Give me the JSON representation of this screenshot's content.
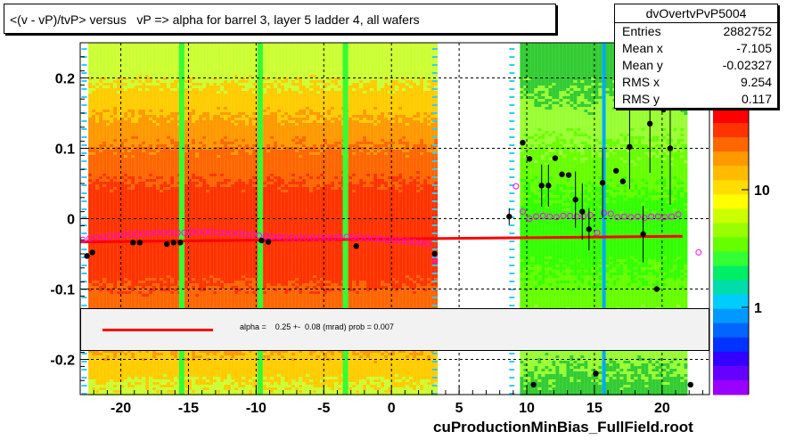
{
  "title": "<(v - vP)/tvP> versus   vP => alpha for barrel 3, layer 5 ladder 4, all wafers",
  "stats": {
    "name": "dvOvertvPvP5004",
    "rows": [
      {
        "label": "Entries",
        "value": "2882752"
      },
      {
        "label": "Mean x",
        "value": "-7.105"
      },
      {
        "label": "Mean y",
        "value": "-0.02327"
      },
      {
        "label": "RMS x",
        "value": "9.254"
      },
      {
        "label": "RMS y",
        "value": "0.117"
      }
    ]
  },
  "fit_legend": "alpha =    0.25 +-  0.08 (mrad) prob = 0.007",
  "file_label": "cuProductionMinBias_FullField.root",
  "colors": {
    "fit_line": "#ff0000",
    "profile_points": "#000000",
    "open_markers": "#ff00ff",
    "grid": "#000000"
  },
  "chart_data": {
    "type": "scatter",
    "description_of_layers": [
      "2D histogram colour map",
      "profile points",
      "linear fit"
    ],
    "xlim": [
      -23,
      23.5
    ],
    "ylim": [
      -0.25,
      0.25
    ],
    "x_ticks": [
      "-20",
      "-15",
      "-10",
      "-5",
      "0",
      "5",
      "10",
      "15",
      "20"
    ],
    "x_tick_values": [
      -20,
      -15,
      -10,
      -5,
      0,
      5,
      10,
      15,
      20
    ],
    "y_ticks": [
      "0.2",
      "0.1",
      "0",
      "-0.1",
      "-0.2"
    ],
    "y_tick_values": [
      0.2,
      0.1,
      0,
      -0.1,
      -0.2
    ],
    "z_scale": "log",
    "z_ticks": [
      "10",
      "1"
    ],
    "z_tick_values": [
      10,
      1
    ],
    "grid": true,
    "fit_line": {
      "x": [
        -23,
        21.5
      ],
      "y": [
        -0.033,
        -0.025
      ]
    },
    "profile_points": [
      {
        "x": -22.5,
        "y": -0.053
      },
      {
        "x": -22.1,
        "y": -0.048
      },
      {
        "x": -19.1,
        "y": -0.034
      },
      {
        "x": -18.6,
        "y": -0.034
      },
      {
        "x": -16.6,
        "y": -0.036
      },
      {
        "x": -16.1,
        "y": -0.034
      },
      {
        "x": -15.6,
        "y": -0.034
      },
      {
        "x": -9.6,
        "y": -0.031
      },
      {
        "x": -9.1,
        "y": -0.033
      },
      {
        "x": -2.6,
        "y": -0.039
      },
      {
        "x": 3.2,
        "y": -0.05
      },
      {
        "x": 8.7,
        "y": 0.003,
        "err": 0.012
      },
      {
        "x": 9.7,
        "y": 0.108
      },
      {
        "x": 10.2,
        "y": 0.085
      },
      {
        "x": 11.1,
        "y": 0.047,
        "err": 0.03
      },
      {
        "x": 11.6,
        "y": 0.047,
        "err": 0.03
      },
      {
        "x": 12.1,
        "y": 0.086
      },
      {
        "x": 12.6,
        "y": 0.063
      },
      {
        "x": 13.1,
        "y": 0.062
      },
      {
        "x": 13.6,
        "y": 0.027,
        "err": 0.04
      },
      {
        "x": 14.1,
        "y": 0.01,
        "err": 0.04
      },
      {
        "x": 14.6,
        "y": -0.015,
        "err": 0.03
      },
      {
        "x": 15.1,
        "y": -0.22
      },
      {
        "x": 15.6,
        "y": 0.051,
        "err": 0.05
      },
      {
        "x": 16.6,
        "y": 0.068
      },
      {
        "x": 17.1,
        "y": 0.053
      },
      {
        "x": 17.6,
        "y": 0.102,
        "err": 0.06
      },
      {
        "x": 18.6,
        "y": -0.022,
        "err": 0.04
      },
      {
        "x": 19.1,
        "y": 0.135,
        "err": 0.07
      },
      {
        "x": 19.6,
        "y": -0.1
      },
      {
        "x": 20.1,
        "y": 0.155
      },
      {
        "x": 20.6,
        "y": 0.1,
        "err": 0.08
      },
      {
        "x": 22.1,
        "y": -0.236
      },
      {
        "x": 10.5,
        "y": -0.236
      }
    ],
    "open_markers": [
      {
        "x": -22.8,
        "y": -0.03
      },
      {
        "x": -22.3,
        "y": -0.028
      },
      {
        "x": -21.8,
        "y": -0.027
      },
      {
        "x": -21.3,
        "y": -0.026
      },
      {
        "x": -20.8,
        "y": -0.025
      },
      {
        "x": -20.3,
        "y": -0.024
      },
      {
        "x": -19.8,
        "y": -0.023
      },
      {
        "x": -19.3,
        "y": -0.022
      },
      {
        "x": -18.8,
        "y": -0.022
      },
      {
        "x": -18.3,
        "y": -0.021
      },
      {
        "x": -17.8,
        "y": -0.021
      },
      {
        "x": -17.3,
        "y": -0.02
      },
      {
        "x": -16.8,
        "y": -0.02
      },
      {
        "x": -16.3,
        "y": -0.02
      },
      {
        "x": -15.8,
        "y": -0.02
      },
      {
        "x": -15.3,
        "y": -0.02
      },
      {
        "x": -14.8,
        "y": -0.019
      },
      {
        "x": -14.3,
        "y": -0.019
      },
      {
        "x": -13.8,
        "y": -0.019
      },
      {
        "x": -13.3,
        "y": -0.019
      },
      {
        "x": -12.8,
        "y": -0.02
      },
      {
        "x": -12.3,
        "y": -0.02
      },
      {
        "x": -11.8,
        "y": -0.021
      },
      {
        "x": -11.3,
        "y": -0.021
      },
      {
        "x": -10.8,
        "y": -0.022
      },
      {
        "x": -10.3,
        "y": -0.023
      },
      {
        "x": -9.8,
        "y": -0.024
      },
      {
        "x": -9.3,
        "y": -0.025
      },
      {
        "x": -8.8,
        "y": -0.026
      },
      {
        "x": -8.3,
        "y": -0.026
      },
      {
        "x": -7.8,
        "y": -0.027
      },
      {
        "x": -7.3,
        "y": -0.027
      },
      {
        "x": -6.8,
        "y": -0.027
      },
      {
        "x": -6.3,
        "y": -0.027
      },
      {
        "x": -5.8,
        "y": -0.027
      },
      {
        "x": -5.3,
        "y": -0.027
      },
      {
        "x": -4.8,
        "y": -0.027
      },
      {
        "x": -4.3,
        "y": -0.027
      },
      {
        "x": -3.8,
        "y": -0.026
      },
      {
        "x": -3.3,
        "y": -0.026
      },
      {
        "x": -2.8,
        "y": -0.026
      },
      {
        "x": -2.3,
        "y": -0.027
      },
      {
        "x": -1.8,
        "y": -0.027
      },
      {
        "x": -1.3,
        "y": -0.028
      },
      {
        "x": -0.8,
        "y": -0.029
      },
      {
        "x": -0.3,
        "y": -0.03
      },
      {
        "x": 0.2,
        "y": -0.031
      },
      {
        "x": 0.7,
        "y": -0.031
      },
      {
        "x": 1.2,
        "y": -0.032
      },
      {
        "x": 1.7,
        "y": -0.033
      },
      {
        "x": 2.2,
        "y": -0.034
      },
      {
        "x": 2.7,
        "y": -0.036
      },
      {
        "x": 3.2,
        "y": -0.06
      },
      {
        "x": 9.2,
        "y": 0.046
      },
      {
        "x": 9.7,
        "y": 0.01
      },
      {
        "x": 10.2,
        "y": 0.0
      },
      {
        "x": 10.7,
        "y": 0.003
      },
      {
        "x": 11.2,
        "y": 0.004
      },
      {
        "x": 11.7,
        "y": 0.003
      },
      {
        "x": 12.2,
        "y": 0.002
      },
      {
        "x": 12.7,
        "y": 0.004
      },
      {
        "x": 13.2,
        "y": 0.004
      },
      {
        "x": 13.7,
        "y": 0.003
      },
      {
        "x": 14.2,
        "y": 0.003
      },
      {
        "x": 14.7,
        "y": 0.005
      },
      {
        "x": 15.2,
        "y": -0.02
      },
      {
        "x": 15.7,
        "y": 0.008
      },
      {
        "x": 16.2,
        "y": 0.007
      },
      {
        "x": 16.7,
        "y": 0.002
      },
      {
        "x": 17.2,
        "y": 0.003
      },
      {
        "x": 17.7,
        "y": 0.002
      },
      {
        "x": 18.2,
        "y": 0.003
      },
      {
        "x": 18.7,
        "y": 0.001
      },
      {
        "x": 19.2,
        "y": 0.003
      },
      {
        "x": 19.7,
        "y": 0.003
      },
      {
        "x": 20.2,
        "y": 0.002
      },
      {
        "x": 20.7,
        "y": 0.003
      },
      {
        "x": 21.2,
        "y": 0.006
      },
      {
        "x": 22.7,
        "y": -0.048
      }
    ]
  }
}
